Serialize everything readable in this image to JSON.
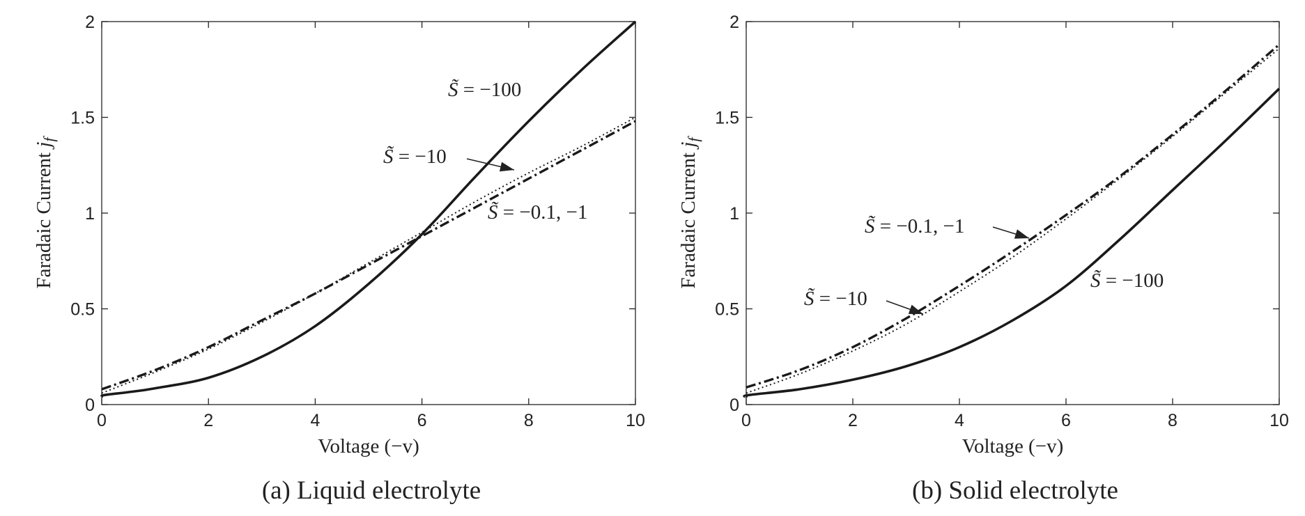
{
  "chart_data": [
    {
      "type": "line",
      "caption": "(a) Liquid electrolyte",
      "xlabel": "Voltage (−v)",
      "ylabel": "Faradaic Current j",
      "ylabel_sub": "f",
      "xlim": [
        0,
        10
      ],
      "ylim": [
        0,
        2
      ],
      "xticks": [
        "0",
        "2",
        "4",
        "6",
        "8",
        "10"
      ],
      "yticks": [
        "0",
        "0.5",
        "1",
        "1.5",
        "2"
      ],
      "grid": false,
      "series": [
        {
          "name": "S̃ = −100",
          "style": "solid",
          "x": [
            0,
            0.05,
            0.5,
            1,
            2,
            3,
            4,
            5,
            6,
            7,
            8,
            9,
            10
          ],
          "y": [
            0.04,
            0.05,
            0.065,
            0.085,
            0.14,
            0.25,
            0.41,
            0.63,
            0.89,
            1.19,
            1.48,
            1.75,
            2.0
          ]
        },
        {
          "name": "S̃ = −10",
          "style": "dashdot",
          "x": [
            0,
            1,
            2,
            3,
            4,
            5,
            6,
            7,
            8,
            9,
            10
          ],
          "y": [
            0.08,
            0.18,
            0.3,
            0.44,
            0.58,
            0.73,
            0.88,
            1.03,
            1.18,
            1.33,
            1.48
          ]
        },
        {
          "name": "S̃ = −0.1, −1",
          "style": "dotted",
          "x": [
            0,
            1,
            2,
            3,
            4,
            5,
            6,
            7,
            8,
            9,
            10
          ],
          "y": [
            0.06,
            0.17,
            0.29,
            0.43,
            0.58,
            0.74,
            0.9,
            1.06,
            1.21,
            1.35,
            1.5
          ]
        }
      ],
      "annotations": [
        {
          "text_pre": "S̃ = −100"
        },
        {
          "text_pre": "S̃ = −10"
        },
        {
          "text_pre": "S̃ = −0.1, −1"
        }
      ]
    },
    {
      "type": "line",
      "caption": "(b) Solid electrolyte",
      "xlabel": "Voltage (−v)",
      "ylabel": "Faradaic Current j",
      "ylabel_sub": "f",
      "xlim": [
        0,
        10
      ],
      "ylim": [
        0,
        2
      ],
      "xticks": [
        "0",
        "2",
        "4",
        "6",
        "8",
        "10"
      ],
      "yticks": [
        "0",
        "0.5",
        "1",
        "1.5",
        "2"
      ],
      "grid": false,
      "series": [
        {
          "name": "S̃ = −100",
          "style": "solid",
          "x": [
            0,
            0.05,
            1,
            2,
            3,
            4,
            5,
            6,
            7,
            8,
            9,
            10
          ],
          "y": [
            0.04,
            0.05,
            0.08,
            0.13,
            0.2,
            0.3,
            0.44,
            0.62,
            0.86,
            1.12,
            1.38,
            1.65
          ]
        },
        {
          "name": "S̃ = −10",
          "style": "dashdot",
          "x": [
            0,
            1,
            2,
            3,
            4,
            5,
            6,
            7,
            8,
            9,
            10
          ],
          "y": [
            0.09,
            0.18,
            0.3,
            0.45,
            0.62,
            0.8,
            0.99,
            1.19,
            1.41,
            1.64,
            1.88
          ]
        },
        {
          "name": "S̃ = −0.1, −1",
          "style": "dotted",
          "x": [
            0,
            1,
            2,
            3,
            4,
            5,
            6,
            7,
            8,
            9,
            10
          ],
          "y": [
            0.06,
            0.16,
            0.28,
            0.42,
            0.59,
            0.77,
            0.97,
            1.18,
            1.4,
            1.63,
            1.86
          ]
        }
      ],
      "annotations": [
        {
          "text_pre": "S̃ = −0.1, −1"
        },
        {
          "text_pre": "S̃ = −10"
        },
        {
          "text_pre": "S̃ = −100"
        }
      ]
    }
  ]
}
